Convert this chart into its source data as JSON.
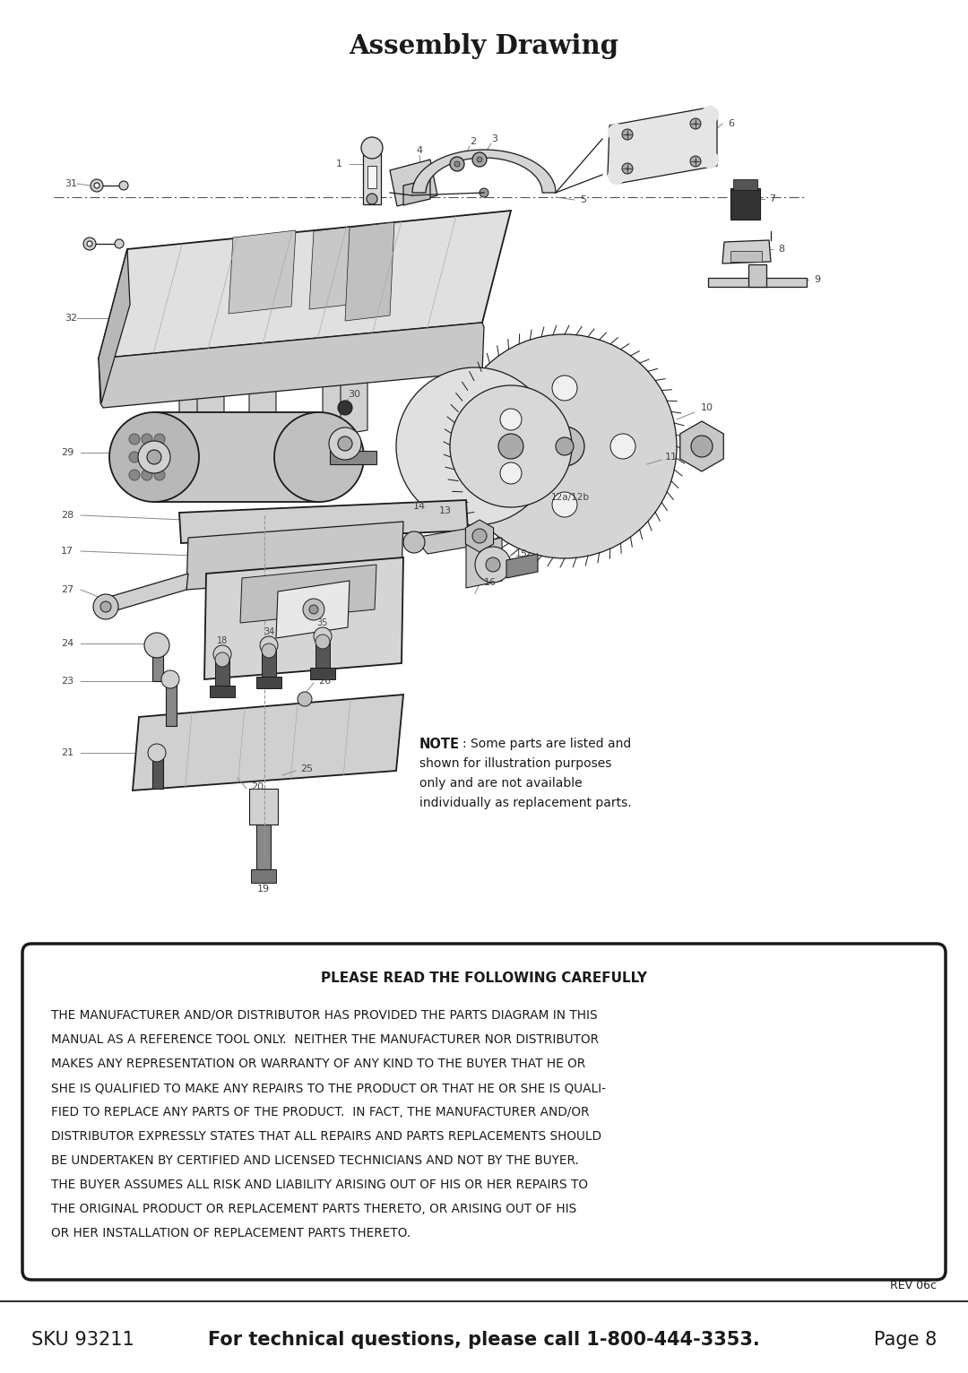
{
  "title": "Assembly Drawing",
  "note_bold": "NOTE",
  "note_text": ": Some parts are listed and\nshown for illustration purposes\nonly and are not available\nindividually as replacement parts.",
  "box_header": "PLEASE READ THE FOLLOWING CAREFULLY",
  "box_body_lines": [
    "THE MANUFACTURER AND/OR DISTRIBUTOR HAS PROVIDED THE PARTS DIAGRAM IN THIS",
    "MANUAL AS A REFERENCE TOOL ONLY.  NEITHER THE MANUFACTURER NOR DISTRIBUTOR",
    "MAKES ANY REPRESENTATION OR WARRANTY OF ANY KIND TO THE BUYER THAT HE OR",
    "SHE IS QUALIFIED TO MAKE ANY REPAIRS TO THE PRODUCT OR THAT HE OR SHE IS QUALI-",
    "FIED TO REPLACE ANY PARTS OF THE PRODUCT.  IN FACT, THE MANUFACTURER AND/OR",
    "DISTRIBUTOR EXPRESSLY STATES THAT ALL REPAIRS AND PARTS REPLACEMENTS SHOULD",
    "BE UNDERTAKEN BY CERTIFIED AND LICENSED TECHNICIANS AND NOT BY THE BUYER.",
    "THE BUYER ASSUMES ALL RISK AND LIABILITY ARISING OUT OF HIS OR HER REPAIRS TO",
    "THE ORIGINAL PRODUCT OR REPLACEMENT PARTS THERETO, OR ARISING OUT OF HIS",
    "OR HER INSTALLATION OF REPLACEMENT PARTS THERETO."
  ],
  "rev_text": "REV 06c",
  "footer_sku": "SKU 93211",
  "footer_bold": "For technical questions, please call 1-800-444-3353.",
  "footer_page": "Page 8",
  "bg_color": "#ffffff",
  "text_color": "#1a1a1a",
  "box_border_color": "#1a1a1a",
  "fig_width": 10.8,
  "fig_height": 15.32
}
